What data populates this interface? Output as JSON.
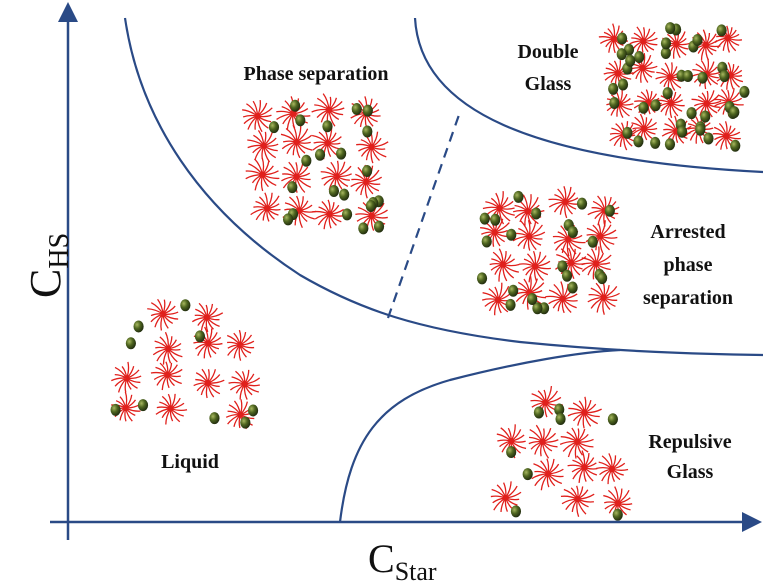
{
  "axes": {
    "y": {
      "letter": "C",
      "subscript": "HS"
    },
    "x": {
      "letter": "C",
      "subscript": "Star"
    }
  },
  "regions": [
    {
      "lines": [
        "Phase separation"
      ]
    },
    {
      "lines": [
        "Double",
        "Glass"
      ]
    },
    {
      "lines": [
        "Arrested",
        "phase",
        "separation"
      ]
    },
    {
      "lines": [
        "Liquid"
      ]
    },
    {
      "lines": [
        "Repulsive",
        "Glass"
      ]
    }
  ]
}
